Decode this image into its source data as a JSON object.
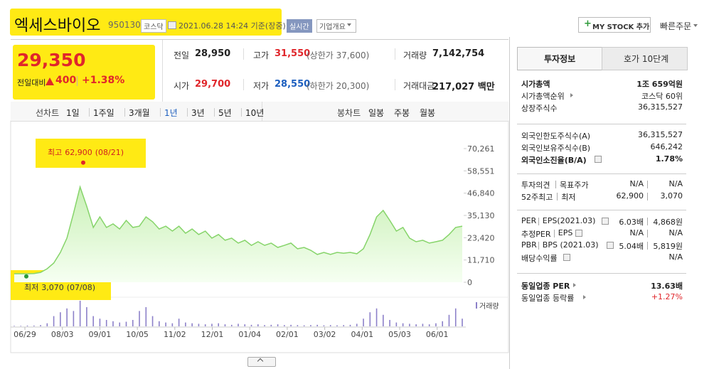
{
  "header": {
    "name": "엑세스바이오",
    "code": "950130",
    "market": "코스닥",
    "timestamp": "2021.06.28 14:24 기준(장중)",
    "realtime": "실시간",
    "company_info": "기업개요",
    "my_stock": "MY STOCK 추가",
    "quick_order": "빠른주문"
  },
  "quote": {
    "price": "29,350",
    "change_label": "전일대비",
    "change": "400",
    "change_rate": "+1.38%",
    "stats": [
      {
        "label": "전일",
        "value": "28,950"
      },
      {
        "label": "고가",
        "value": "31,550",
        "note": "(상한가 37,600)"
      },
      {
        "label": "거래량",
        "value": "7,142,754"
      },
      {
        "label": "시가",
        "value": "29,700"
      },
      {
        "label": "저가",
        "value": "28,550",
        "note": "(하한가 20,300)"
      },
      {
        "label": "거래대금",
        "value": "217,027 백만"
      }
    ]
  },
  "toolbar": {
    "line_label": "선차트",
    "line_periods": [
      "1일",
      "1주일",
      "3개월",
      "1년",
      "3년",
      "5년",
      "10년"
    ],
    "active": 3,
    "candle_label": "봉차트",
    "candle_periods": [
      "일봉",
      "주봉",
      "월봉"
    ]
  },
  "chart": {
    "type": "area",
    "values": [
      4500,
      4500,
      4500,
      4600,
      5200,
      7100,
      10100,
      15700,
      23200,
      36300,
      50100,
      40000,
      28800,
      34400,
      28800,
      30700,
      28000,
      32500,
      28800,
      29500,
      34400,
      31800,
      28000,
      29500,
      26900,
      29500,
      25800,
      28000,
      25100,
      26900,
      23200,
      25100,
      22100,
      23200,
      20600,
      22100,
      19400,
      21300,
      19400,
      20600,
      18300,
      19400,
      20600,
      17600,
      18300,
      16800,
      14600,
      15700,
      14600,
      15700,
      15300,
      15700,
      15000,
      17600,
      25100,
      34400,
      37800,
      32500,
      26900,
      28800,
      23200,
      21300,
      22100,
      20600,
      21300,
      22100,
      25100,
      28800,
      29500
    ],
    "color": "#86d46a",
    "ylim": [
      0,
      70261
    ],
    "yticks": [
      0,
      {
        "value": 11710,
        "label": "11,710"
      },
      {
        "value": 23420,
        "label": "23,420"
      },
      {
        "value": 35130,
        "label": "35,130"
      },
      {
        "value": 46840,
        "label": "46,840"
      },
      {
        "value": 58551,
        "label": "58,551"
      },
      {
        "value": 70261,
        "label": "70,261"
      }
    ],
    "xticks": [
      "06/29",
      "08/03",
      "09/01",
      "10/05",
      "11/02",
      "12/01",
      "01/04",
      "02/01",
      "03/02",
      "04/01",
      "05/03",
      "06/01"
    ],
    "high": {
      "label": "최고",
      "value": 62900,
      "value_label": "62,900",
      "date": "(08/21)"
    },
    "low": {
      "label": "최저",
      "value": 3070,
      "value_label": "3,070",
      "date": "(07/08)"
    },
    "volume_label": "거래량",
    "volume_color": "#8c80c9",
    "volume": [
      2,
      2,
      3,
      3,
      5,
      12,
      40,
      55,
      70,
      60,
      100,
      75,
      40,
      30,
      25,
      20,
      15,
      18,
      25,
      60,
      75,
      40,
      20,
      15,
      12,
      30,
      15,
      12,
      10,
      8,
      10,
      12,
      8,
      6,
      10,
      8,
      6,
      8,
      5,
      6,
      8,
      5,
      6,
      5,
      4,
      5,
      6,
      4,
      5,
      4,
      5,
      6,
      10,
      30,
      55,
      70,
      45,
      25,
      15,
      12,
      10,
      8,
      10,
      8,
      12,
      20,
      45,
      70,
      30
    ]
  },
  "info": {
    "tabs": [
      "투자정보",
      "호가 10단계"
    ],
    "groups": [
      [
        {
          "labels": [
            "시가총액"
          ],
          "values": [
            "1조 659억원"
          ],
          "bold": true
        },
        {
          "labels": [
            "시가총액순위"
          ],
          "values": [
            "코스닥 60위"
          ],
          "link": true
        },
        {
          "labels": [
            "상장주식수"
          ],
          "values": [
            "36,315,527"
          ]
        }
      ],
      [
        {
          "labels": [
            "외국인한도주식수(A)"
          ],
          "values": [
            "36,315,527"
          ]
        },
        {
          "labels": [
            "외국인보유주식수(B)"
          ],
          "values": [
            "646,242"
          ]
        },
        {
          "labels": [
            "외국인소진율(B/A)"
          ],
          "values": [
            "1.78%"
          ],
          "bold": true,
          "help": true
        }
      ],
      [
        {
          "labels": [
            "투자의견",
            "목표주가"
          ],
          "values": [
            "N/A",
            "N/A"
          ]
        },
        {
          "labels": [
            "52주최고",
            "최저"
          ],
          "values": [
            "62,900",
            "3,070"
          ]
        }
      ],
      [
        {
          "labels": [
            "PER",
            "EPS(2021.03)"
          ],
          "values": [
            "6.03배",
            "4,868원"
          ],
          "help": true
        },
        {
          "labels": [
            "추정PER",
            "EPS"
          ],
          "values": [
            "N/A",
            "N/A"
          ],
          "help": true
        },
        {
          "labels": [
            "PBR",
            "BPS (2021.03)"
          ],
          "values": [
            "5.04배",
            "5,819원"
          ],
          "help": true
        },
        {
          "labels": [
            "배당수익률"
          ],
          "values": [
            "N/A"
          ],
          "help": true
        }
      ],
      [
        {
          "labels": [
            "동일업종 PER"
          ],
          "values": [
            "13.63배"
          ],
          "bold": true,
          "link": true
        },
        {
          "labels": [
            "동일업종 등락률"
          ],
          "values": [
            "+1.27%"
          ],
          "link": true,
          "color": "#e0262b"
        }
      ]
    ]
  }
}
